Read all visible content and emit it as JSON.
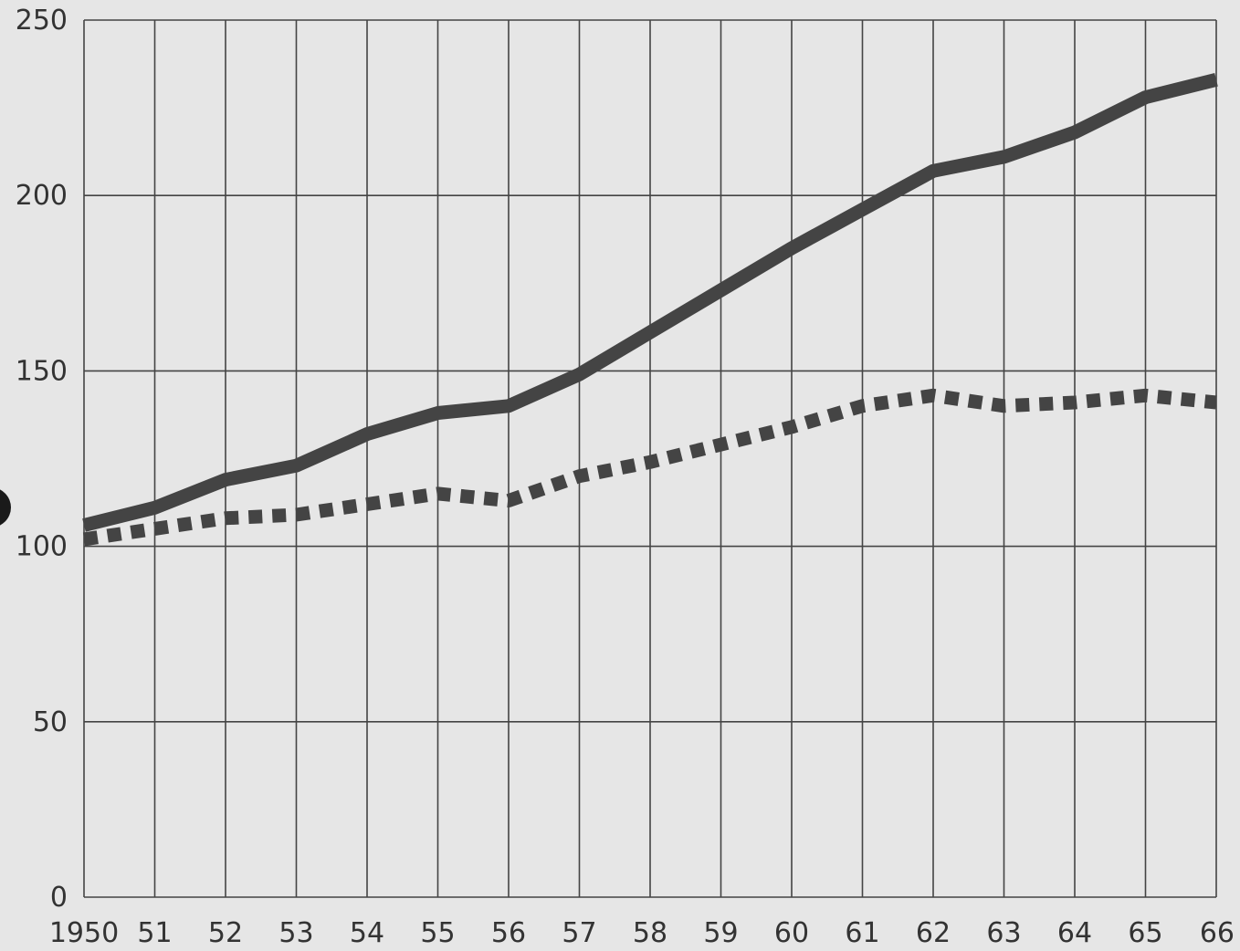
{
  "chart_data": {
    "type": "line",
    "title": "",
    "xlabel": "",
    "ylabel": "",
    "x": [
      "1950",
      "51",
      "52",
      "53",
      "54",
      "55",
      "56",
      "57",
      "58",
      "59",
      "60",
      "61",
      "62",
      "63",
      "64",
      "65",
      "66"
    ],
    "y_ticks": [
      "0",
      "50",
      "100",
      "150",
      "200",
      "250"
    ],
    "ylim": [
      0,
      250
    ],
    "grid": true,
    "series": [
      {
        "style": "solid",
        "color": "#444444",
        "values": [
          106,
          111,
          119,
          123,
          132,
          138,
          140,
          149,
          161,
          173,
          185,
          196,
          207,
          211,
          218,
          228,
          233
        ]
      },
      {
        "style": "dashed",
        "color": "#444444",
        "values": [
          102,
          105,
          108,
          109,
          112,
          115,
          113,
          120,
          124,
          129,
          134,
          140,
          143,
          140,
          141,
          143,
          141
        ]
      }
    ]
  }
}
